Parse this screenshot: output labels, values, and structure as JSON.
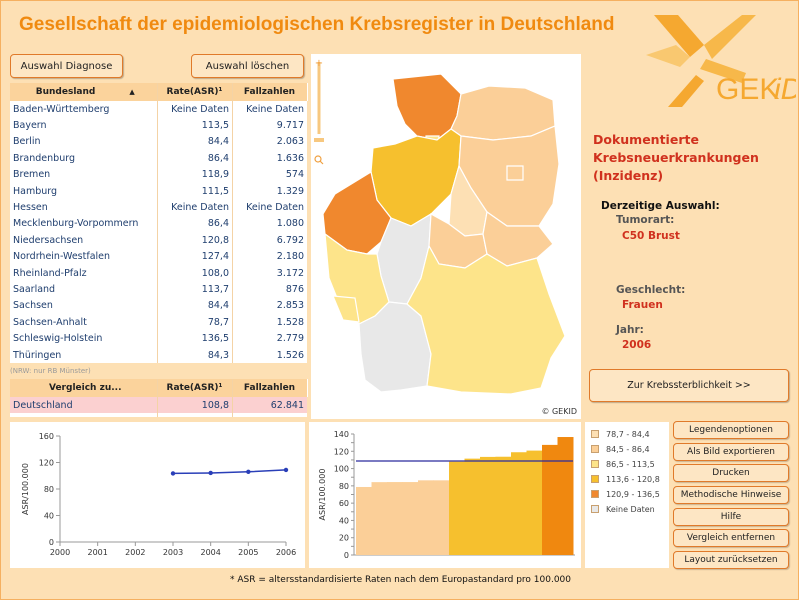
{
  "app": {
    "title": "Gesellschaft der epidemiologischen Krebsregister in Deutschland",
    "logo_text": "GEKID",
    "colors": {
      "accent": "#f08a10",
      "panel_bg": "#fde0b4",
      "header_bg": "#fbd39c",
      "link_text": "#1f3e6e",
      "red_text": "#d0311e"
    }
  },
  "buttons": {
    "auswahl_diagnose": "Auswahl Diagnose",
    "auswahl_loeschen": "Auswahl löschen",
    "krebssterblichkeit": "Zur Krebssterblichkeit  >>"
  },
  "table": {
    "headers": [
      "Bundesland",
      "Rate(ASR)¹",
      "Fallzahlen"
    ],
    "sort_icon": "triangle-up-icon",
    "rows": [
      [
        "Baden-Württemberg",
        "Keine Daten",
        "Keine Daten"
      ],
      [
        "Bayern",
        "113,5",
        "9.717"
      ],
      [
        "Berlin",
        "84,4",
        "2.063"
      ],
      [
        "Brandenburg",
        "86,4",
        "1.636"
      ],
      [
        "Bremen",
        "118,9",
        "574"
      ],
      [
        "Hamburg",
        "111,5",
        "1.329"
      ],
      [
        "Hessen",
        "Keine Daten",
        "Keine Daten"
      ],
      [
        "Mecklenburg-Vorpommern",
        "86,4",
        "1.080"
      ],
      [
        "Niedersachsen",
        "120,8",
        "6.792"
      ],
      [
        "Nordrhein-Westfalen",
        "127,4",
        "2.180"
      ],
      [
        "Rheinland-Pfalz",
        "108,0",
        "3.172"
      ],
      [
        "Saarland",
        "113,7",
        "876"
      ],
      [
        "Sachsen",
        "84,4",
        "2.853"
      ],
      [
        "Sachsen-Anhalt",
        "78,7",
        "1.528"
      ],
      [
        "Schleswig-Holstein",
        "136,5",
        "2.779"
      ],
      [
        "Thüringen",
        "84,3",
        "1.526"
      ]
    ],
    "note": "(NRW: nur RB Münster)"
  },
  "compare_table": {
    "headers": [
      "Vergleich zu...",
      "Rate(ASR)¹",
      "Fallzahlen"
    ],
    "rows": [
      [
        "Deutschland",
        "108,8",
        "62.841"
      ]
    ]
  },
  "map": {
    "copyright": "© GEKID"
  },
  "info": {
    "heading": "Dokumentierte Krebsneuerkrankungen (Inzidenz)",
    "heading_lines": [
      "Dokumentierte",
      "Krebsneuerkrankungen",
      "(Inzidenz)"
    ],
    "current_label": "Derzeitige Auswahl:",
    "tumor_label": "Tumorart:",
    "tumor_value": "C50 Brust",
    "sex_label": "Geschlecht:",
    "sex_value": "Frauen",
    "year_label": "Jahr:",
    "year_value": "2006"
  },
  "legend": {
    "items": [
      {
        "label": "78,7 - 84,4",
        "color": "#fde0b4"
      },
      {
        "label": "84,5 - 86,4",
        "color": "#fbcf98"
      },
      {
        "label": "86,5 - 113,5",
        "color": "#fde48a"
      },
      {
        "label": "113,6 - 120,8",
        "color": "#f6c02e"
      },
      {
        "label": "120,9 - 136,5",
        "color": "#f0882e"
      },
      {
        "label": "Keine Daten",
        "color": "#e8e8e8"
      }
    ]
  },
  "right_buttons": [
    "Legendenoptionen",
    "Als Bild exportieren",
    "Drucken",
    "Methodische Hinweise",
    "Hilfe",
    "Vergleich entfernen",
    "Layout zurücksetzen"
  ],
  "footer": "* ASR = altersstandardisierte Raten nach dem Europastandard pro 100.000",
  "chart_data": [
    {
      "type": "line",
      "ylabel": "ASR/100.000",
      "ylim": [
        0,
        160
      ],
      "yticks": [
        0,
        40,
        80,
        120,
        160
      ],
      "x": [
        "2000",
        "2001",
        "2002",
        "2003",
        "2004",
        "2005",
        "2006"
      ],
      "series": [
        {
          "values": [
            null,
            null,
            null,
            103.5,
            104.2,
            106.0,
            108.8
          ],
          "color": "#2a3fb8"
        }
      ],
      "grid": false
    },
    {
      "type": "bar",
      "ylabel": "ASR/100.000",
      "ylim": [
        0,
        140
      ],
      "yticks": [
        0,
        10,
        20,
        30,
        40,
        50,
        60,
        70,
        80,
        90,
        100,
        110,
        120,
        130,
        140
      ],
      "values": [
        78.7,
        84.3,
        84.4,
        84.4,
        86.4,
        86.4,
        108.0,
        111.5,
        113.5,
        113.7,
        118.9,
        120.8,
        127.4,
        136.5
      ],
      "colors": [
        "#fbcf98",
        "#fbcf98",
        "#fbcf98",
        "#fbcf98",
        "#fbcf98",
        "#fbcf98",
        "#f6c02e",
        "#f6c02e",
        "#f6c02e",
        "#f6c02e",
        "#f6c02e",
        "#f6c02e",
        "#f0880f",
        "#f0880f"
      ],
      "reference_line": 108.8,
      "reference_color": "#2a2a9e"
    }
  ]
}
